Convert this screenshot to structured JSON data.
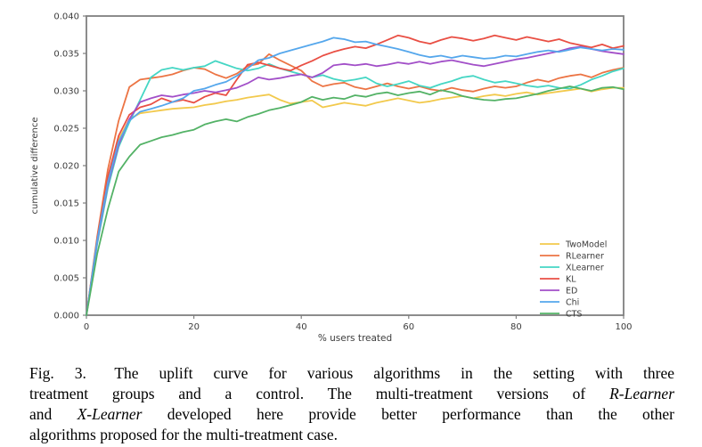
{
  "chart_data": {
    "type": "line",
    "title": "",
    "xlabel": "% users treated",
    "ylabel": "cumulative difference",
    "xlim": [
      0,
      100
    ],
    "ylim": [
      0,
      0.04
    ],
    "grid": false,
    "legend_position": "lower right",
    "x_ticks": [
      0,
      20,
      40,
      60,
      80,
      100
    ],
    "y_ticks": [
      0.0,
      0.005,
      0.01,
      0.015,
      0.02,
      0.025,
      0.03,
      0.035,
      0.04
    ],
    "y_tick_labels": [
      "0.000",
      "0.005",
      "0.010",
      "0.015",
      "0.020",
      "0.025",
      "0.030",
      "0.035",
      "0.040"
    ],
    "x": [
      0,
      2,
      4,
      6,
      8,
      10,
      12,
      14,
      16,
      18,
      20,
      22,
      24,
      26,
      28,
      30,
      32,
      34,
      36,
      38,
      40,
      42,
      44,
      46,
      48,
      50,
      52,
      54,
      56,
      58,
      60,
      62,
      64,
      66,
      68,
      70,
      72,
      74,
      76,
      78,
      80,
      82,
      84,
      86,
      88,
      90,
      92,
      94,
      96,
      98,
      100
    ],
    "series": [
      {
        "name": "TwoModel",
        "color": "#f2c94c",
        "values": [
          0.0,
          0.01,
          0.018,
          0.0235,
          0.0262,
          0.027,
          0.0272,
          0.0274,
          0.0276,
          0.0277,
          0.0278,
          0.0281,
          0.0283,
          0.0286,
          0.0288,
          0.0291,
          0.0293,
          0.0295,
          0.0288,
          0.0283,
          0.0285,
          0.0287,
          0.0278,
          0.0281,
          0.0284,
          0.0282,
          0.028,
          0.0284,
          0.0287,
          0.029,
          0.0287,
          0.0284,
          0.0286,
          0.0289,
          0.0291,
          0.0293,
          0.029,
          0.0293,
          0.0295,
          0.0293,
          0.0296,
          0.0298,
          0.0295,
          0.0297,
          0.0299,
          0.0301,
          0.0303,
          0.0299,
          0.0302,
          0.0304,
          0.0304
        ]
      },
      {
        "name": "RLearner",
        "color": "#ec7444",
        "values": [
          0.0,
          0.0105,
          0.0195,
          0.026,
          0.0305,
          0.0315,
          0.0317,
          0.0319,
          0.0322,
          0.0327,
          0.0331,
          0.0329,
          0.0322,
          0.0317,
          0.0323,
          0.0333,
          0.0336,
          0.0349,
          0.0341,
          0.0334,
          0.0327,
          0.0313,
          0.0306,
          0.0309,
          0.0311,
          0.0305,
          0.0302,
          0.0306,
          0.031,
          0.0306,
          0.0303,
          0.0306,
          0.0302,
          0.03,
          0.0304,
          0.0301,
          0.0299,
          0.0303,
          0.0306,
          0.0304,
          0.0306,
          0.0311,
          0.0315,
          0.0312,
          0.0317,
          0.032,
          0.0322,
          0.0318,
          0.0324,
          0.0328,
          0.0331
        ]
      },
      {
        "name": "XLearner",
        "color": "#45d6c4",
        "values": [
          0.0,
          0.0095,
          0.017,
          0.0225,
          0.0258,
          0.0288,
          0.0318,
          0.0328,
          0.0331,
          0.0328,
          0.0331,
          0.0333,
          0.034,
          0.0335,
          0.033,
          0.0327,
          0.033,
          0.0336,
          0.033,
          0.0326,
          0.0322,
          0.0318,
          0.0321,
          0.0316,
          0.0313,
          0.0315,
          0.0318,
          0.031,
          0.0306,
          0.0309,
          0.0313,
          0.0307,
          0.0304,
          0.0309,
          0.0313,
          0.0318,
          0.032,
          0.0315,
          0.0311,
          0.0313,
          0.031,
          0.0307,
          0.0305,
          0.0307,
          0.0304,
          0.0303,
          0.0308,
          0.0315,
          0.032,
          0.0326,
          0.033
        ]
      },
      {
        "name": "KL",
        "color": "#e94f44",
        "values": [
          0.0,
          0.0102,
          0.0185,
          0.024,
          0.0268,
          0.0278,
          0.0282,
          0.029,
          0.0285,
          0.0288,
          0.0284,
          0.0292,
          0.0297,
          0.0294,
          0.0315,
          0.0335,
          0.0338,
          0.0334,
          0.033,
          0.0327,
          0.0334,
          0.034,
          0.0347,
          0.0352,
          0.0356,
          0.0359,
          0.0357,
          0.0362,
          0.0368,
          0.0374,
          0.0371,
          0.0366,
          0.0363,
          0.0368,
          0.0372,
          0.037,
          0.0367,
          0.037,
          0.0374,
          0.0371,
          0.0368,
          0.0372,
          0.0369,
          0.0366,
          0.0369,
          0.0364,
          0.0361,
          0.0358,
          0.0362,
          0.0357,
          0.036
        ]
      },
      {
        "name": "ED",
        "color": "#a24fc8",
        "values": [
          0.0,
          0.0098,
          0.0175,
          0.0228,
          0.0262,
          0.0285,
          0.029,
          0.0294,
          0.0292,
          0.0295,
          0.0297,
          0.03,
          0.0298,
          0.0301,
          0.0304,
          0.031,
          0.0318,
          0.0315,
          0.0317,
          0.032,
          0.0322,
          0.0318,
          0.0324,
          0.0334,
          0.0336,
          0.0334,
          0.0336,
          0.0333,
          0.0335,
          0.0338,
          0.0336,
          0.0339,
          0.0336,
          0.0339,
          0.0341,
          0.0338,
          0.0335,
          0.0333,
          0.0336,
          0.0339,
          0.0342,
          0.0344,
          0.0347,
          0.035,
          0.0353,
          0.0357,
          0.0359,
          0.0356,
          0.0353,
          0.0351,
          0.0349
        ]
      },
      {
        "name": "Chi",
        "color": "#55a7ec",
        "values": [
          0.0,
          0.01,
          0.0178,
          0.0232,
          0.026,
          0.0272,
          0.0276,
          0.028,
          0.0285,
          0.029,
          0.03,
          0.0303,
          0.0308,
          0.0312,
          0.032,
          0.033,
          0.0341,
          0.0344,
          0.035,
          0.0354,
          0.0358,
          0.0362,
          0.0366,
          0.0371,
          0.0369,
          0.0365,
          0.0366,
          0.0362,
          0.0359,
          0.0356,
          0.0352,
          0.0348,
          0.0345,
          0.0347,
          0.0344,
          0.0347,
          0.0345,
          0.0343,
          0.0344,
          0.0347,
          0.0346,
          0.0349,
          0.0352,
          0.0354,
          0.0352,
          0.0355,
          0.0358,
          0.0356,
          0.0354,
          0.0356,
          0.0355
        ]
      },
      {
        "name": "CTS",
        "color": "#53b266",
        "values": [
          0.0,
          0.0082,
          0.0142,
          0.0192,
          0.0212,
          0.0228,
          0.0233,
          0.0238,
          0.0241,
          0.0245,
          0.0248,
          0.0255,
          0.0259,
          0.0262,
          0.0259,
          0.0265,
          0.0269,
          0.0274,
          0.0277,
          0.0281,
          0.0285,
          0.0292,
          0.0288,
          0.0291,
          0.0289,
          0.0294,
          0.0292,
          0.0296,
          0.0298,
          0.0294,
          0.0297,
          0.0299,
          0.0295,
          0.0301,
          0.0298,
          0.0293,
          0.029,
          0.0288,
          0.0287,
          0.0289,
          0.029,
          0.0293,
          0.0296,
          0.03,
          0.0303,
          0.0306,
          0.0303,
          0.03,
          0.0304,
          0.0305,
          0.0302
        ]
      }
    ]
  },
  "caption": {
    "lines": [
      {
        "justify": true,
        "segments": [
          {
            "text": "Fig. 3.  The uplift curve for various algorithms in the setting with three",
            "italic": false
          }
        ]
      },
      {
        "justify": true,
        "segments": [
          {
            "text": "treatment groups and a control. The multi-treatment versions of ",
            "italic": false
          },
          {
            "text": "R-Learner",
            "italic": true
          }
        ]
      },
      {
        "justify": true,
        "segments": [
          {
            "text": "and ",
            "italic": false
          },
          {
            "text": "X-Learner",
            "italic": true
          },
          {
            "text": " developed here provide better performance than the other",
            "italic": false
          }
        ]
      },
      {
        "justify": false,
        "segments": [
          {
            "text": "algorithms proposed for the multi-treatment case.",
            "italic": false
          }
        ]
      }
    ]
  },
  "colors": {
    "background": "#ffffff",
    "axis": "#7f7f7f",
    "tick_label": "#3c3c3c",
    "caption_text": "#000000"
  }
}
